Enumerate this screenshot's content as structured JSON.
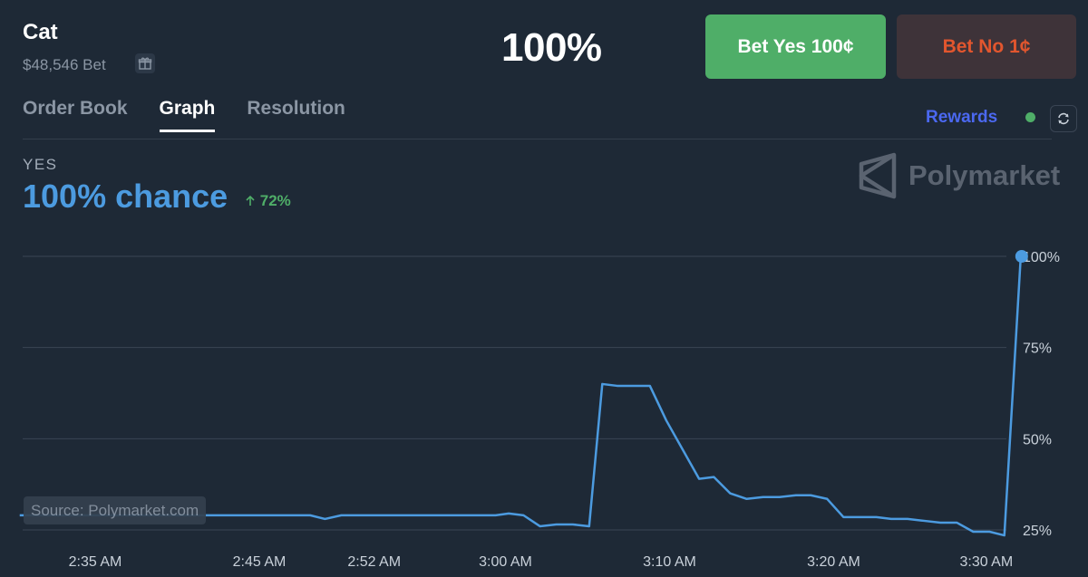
{
  "market": {
    "title": "Cat",
    "volume": "$48,546 Bet",
    "price": "100%"
  },
  "buttons": {
    "yes_label": "Bet Yes 100¢",
    "no_label": "Bet No 1¢"
  },
  "tabs": [
    {
      "label": "Order Book",
      "active": false
    },
    {
      "label": "Graph",
      "active": true
    },
    {
      "label": "Resolution",
      "active": false
    }
  ],
  "rewards": {
    "label": "Rewards",
    "status_color": "#4fae68"
  },
  "summary": {
    "outcome": "YES",
    "chance": "100% chance",
    "delta": "72%"
  },
  "brand": {
    "name": "Polymarket"
  },
  "source": "Source: Polymarket.com",
  "colors": {
    "background": "#1e2936",
    "line": "#4c9be0",
    "yes": "#4fae68",
    "no": "#e2562e",
    "rewards": "#4b68f0"
  },
  "icons": [
    "gift-icon",
    "refresh-icon",
    "polymarket-logo-icon",
    "arrow-up-icon"
  ],
  "chart_data": {
    "type": "line",
    "x_range_minutes_after_2_30": [
      0,
      63
    ],
    "ylim": [
      25,
      100
    ],
    "yticks": [
      "100%",
      "75%",
      "50%",
      "25%"
    ],
    "ytick_values": [
      100,
      75,
      50,
      25
    ],
    "xticks": [
      "2:35 AM",
      "2:45 AM",
      "2:52 AM",
      "3:00 AM",
      "3:10 AM",
      "3:20 AM",
      "3:30 AM"
    ],
    "xtick_values": [
      3.5,
      13.5,
      20.5,
      28.5,
      38.5,
      48.5,
      57.8
    ],
    "grid": true,
    "series": [
      {
        "name": "",
        "points": [
          [
            -1.1,
            29
          ],
          [
            16.6,
            29
          ],
          [
            17.5,
            28
          ],
          [
            18.5,
            29
          ],
          [
            20.3,
            29
          ],
          [
            27.9,
            29
          ],
          [
            28.7,
            29.5
          ],
          [
            29.6,
            29
          ],
          [
            30.6,
            26
          ],
          [
            31.6,
            26.5
          ],
          [
            32.6,
            26.5
          ],
          [
            33.6,
            26
          ],
          [
            34.4,
            65
          ],
          [
            35.3,
            64.5
          ],
          [
            36.3,
            64.5
          ],
          [
            37.3,
            64.5
          ],
          [
            38.3,
            55
          ],
          [
            39.3,
            47
          ],
          [
            40.3,
            39
          ],
          [
            41.2,
            39.5
          ],
          [
            42.2,
            35
          ],
          [
            43.2,
            33.5
          ],
          [
            44.2,
            34
          ],
          [
            45.2,
            34
          ],
          [
            46.2,
            34.5
          ],
          [
            47.1,
            34.5
          ],
          [
            48.1,
            33.5
          ],
          [
            49.1,
            28.5
          ],
          [
            50.1,
            28.5
          ],
          [
            51.1,
            28.5
          ],
          [
            52.0,
            28
          ],
          [
            53.0,
            28
          ],
          [
            54.0,
            27.5
          ],
          [
            55.0,
            27
          ],
          [
            56.0,
            27
          ],
          [
            57.0,
            24.5
          ],
          [
            58.0,
            24.5
          ],
          [
            58.9,
            23.5
          ],
          [
            59.9,
            100
          ]
        ]
      }
    ]
  }
}
